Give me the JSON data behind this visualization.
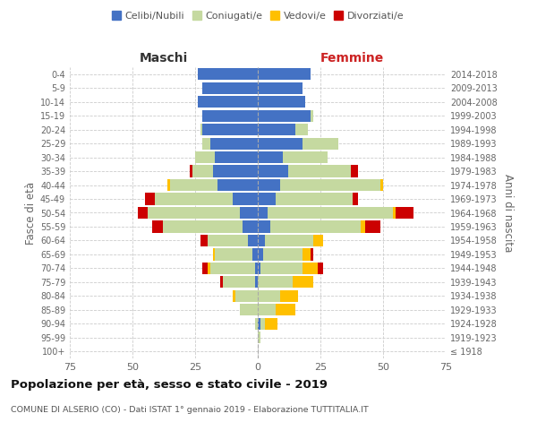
{
  "age_groups": [
    "100+",
    "95-99",
    "90-94",
    "85-89",
    "80-84",
    "75-79",
    "70-74",
    "65-69",
    "60-64",
    "55-59",
    "50-54",
    "45-49",
    "40-44",
    "35-39",
    "30-34",
    "25-29",
    "20-24",
    "15-19",
    "10-14",
    "5-9",
    "0-4"
  ],
  "birth_years": [
    "≤ 1918",
    "1919-1923",
    "1924-1928",
    "1929-1933",
    "1934-1938",
    "1939-1943",
    "1944-1948",
    "1949-1953",
    "1954-1958",
    "1959-1963",
    "1964-1968",
    "1969-1973",
    "1974-1978",
    "1979-1983",
    "1984-1988",
    "1989-1993",
    "1994-1998",
    "1999-2003",
    "2004-2008",
    "2009-2013",
    "2014-2018"
  ],
  "maschi": {
    "celibi": [
      0,
      0,
      0,
      0,
      0,
      1,
      1,
      2,
      4,
      6,
      7,
      10,
      16,
      18,
      17,
      19,
      22,
      22,
      24,
      22,
      24
    ],
    "coniugati": [
      0,
      0,
      1,
      7,
      9,
      13,
      18,
      15,
      16,
      32,
      37,
      31,
      19,
      8,
      8,
      3,
      1,
      0,
      0,
      0,
      0
    ],
    "vedovi": [
      0,
      0,
      0,
      0,
      1,
      0,
      1,
      1,
      0,
      0,
      0,
      0,
      1,
      0,
      0,
      0,
      0,
      0,
      0,
      0,
      0
    ],
    "divorziati": [
      0,
      0,
      0,
      0,
      0,
      1,
      2,
      0,
      3,
      4,
      4,
      4,
      0,
      1,
      0,
      0,
      0,
      0,
      0,
      0,
      0
    ]
  },
  "femmine": {
    "nubili": [
      0,
      0,
      1,
      0,
      0,
      0,
      1,
      2,
      3,
      5,
      4,
      7,
      9,
      12,
      10,
      18,
      15,
      21,
      19,
      18,
      21
    ],
    "coniugate": [
      0,
      1,
      2,
      7,
      9,
      14,
      17,
      16,
      19,
      36,
      50,
      31,
      40,
      25,
      18,
      14,
      5,
      1,
      0,
      0,
      0
    ],
    "vedove": [
      0,
      0,
      5,
      8,
      7,
      8,
      6,
      3,
      4,
      2,
      1,
      0,
      1,
      0,
      0,
      0,
      0,
      0,
      0,
      0,
      0
    ],
    "divorziate": [
      0,
      0,
      0,
      0,
      0,
      0,
      2,
      1,
      0,
      6,
      7,
      2,
      0,
      3,
      0,
      0,
      0,
      0,
      0,
      0,
      0
    ]
  },
  "colors": {
    "celibi": "#4472c4",
    "coniugati": "#c5d9a0",
    "vedovi": "#ffc000",
    "divorziati": "#cc0000"
  },
  "xlim": 75,
  "title": "Popolazione per età, sesso e stato civile - 2019",
  "subtitle": "COMUNE DI ALSERIO (CO) - Dati ISTAT 1° gennaio 2019 - Elaborazione TUTTITALIA.IT",
  "ylabel_left": "Fasce di età",
  "ylabel_right": "Anni di nascita",
  "xlabel_maschi": "Maschi",
  "xlabel_femmine": "Femmine",
  "legend_labels": [
    "Celibi/Nubili",
    "Coniugati/e",
    "Vedovi/e",
    "Divorziati/e"
  ],
  "bg_color": "#ffffff",
  "grid_color": "#cccccc"
}
